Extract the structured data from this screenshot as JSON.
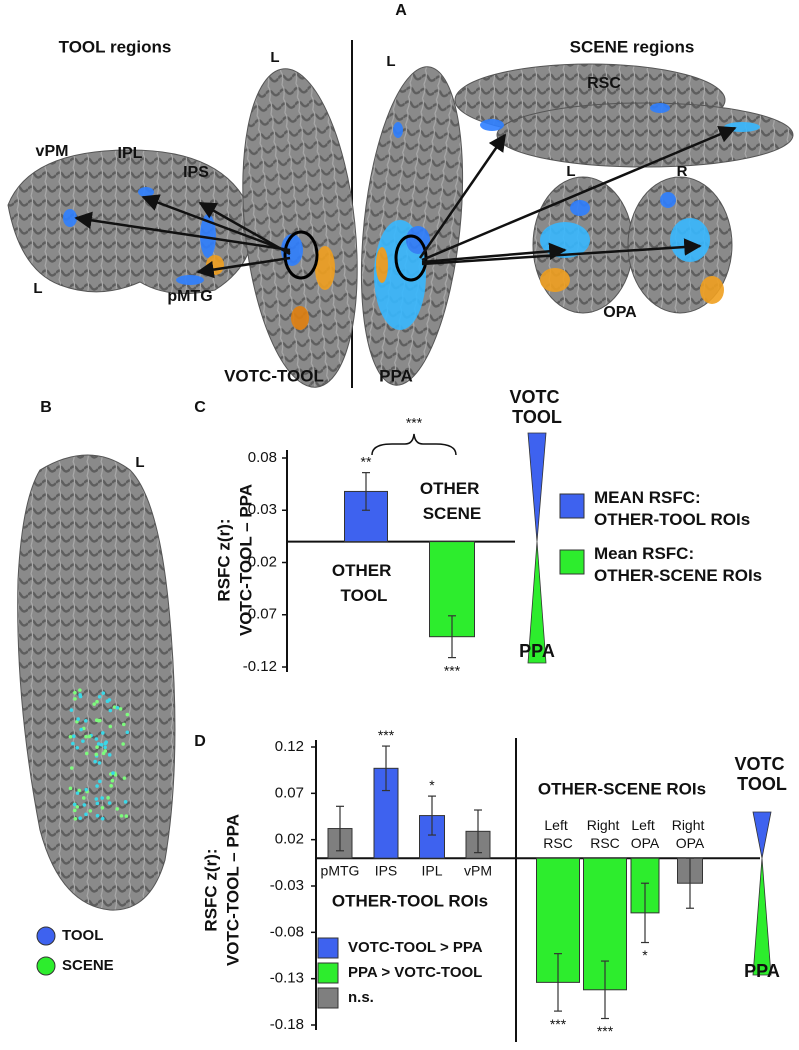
{
  "panel_labels": {
    "a": "A",
    "b": "B",
    "c": "C",
    "d": "D"
  },
  "panel_a": {
    "tool_title": "TOOL regions",
    "scene_title": "SCENE regions",
    "labels": [
      "L",
      "L",
      "RSC",
      "vPM",
      "IPL",
      "IPS",
      "L",
      "pMTG",
      "L",
      "R",
      "OPA",
      "VOTC-TOOL",
      "PPA"
    ]
  },
  "panel_b": {
    "hemisphere": "L",
    "legend": [
      {
        "name": "TOOL",
        "color": "#3e62ef"
      },
      {
        "name": "SCENE",
        "color": "#2ded2d"
      }
    ]
  },
  "chart_data": [
    {
      "type": "bar",
      "ylabel": [
        "RSFC z(r):",
        "VOTC-TOOL – PPA"
      ],
      "categories": [
        "OTHER TOOL",
        "OTHER SCENE"
      ],
      "series": [
        {
          "name": "MEAN RSFC: OTHER-TOOL ROIs",
          "color": "#3e62ef",
          "values": [
            0.048,
            null
          ],
          "errors": [
            0.018,
            null
          ],
          "stars": [
            "**",
            null
          ]
        },
        {
          "name": "Mean RSFC: OTHER-SCENE ROIs",
          "color": "#2ded2d",
          "values": [
            null,
            -0.091
          ],
          "errors": [
            null,
            0.02
          ],
          "stars": [
            null,
            "***"
          ]
        }
      ],
      "bracket_label": "***",
      "ylim": [
        -0.12,
        0.08
      ],
      "yticks": [
        0.08,
        0.03,
        -0.02,
        -0.07,
        -0.12
      ],
      "scale_labels": {
        "top": "VOTC TOOL",
        "bottom": "PPA"
      }
    },
    {
      "type": "bar",
      "ylabel": [
        "RSFC z(r):",
        "VOTC-TOOL – PPA"
      ],
      "categories": [
        "pMTG",
        "IPS",
        "IPL",
        "vPM",
        "Left RSC",
        "Right RSC",
        "Left OPA",
        "Right OPA"
      ],
      "group_labels": [
        "OTHER-TOOL ROIs",
        "OTHER-SCENE ROIs"
      ],
      "series": [
        {
          "name": "VOTC-TOOL > PPA",
          "color": "#3e62ef",
          "values": [
            null,
            0.097,
            0.046,
            null,
            null,
            null,
            null,
            null
          ],
          "errors": [
            null,
            0.024,
            0.021,
            null,
            null,
            null,
            null,
            null
          ],
          "stars": [
            null,
            "***",
            "*",
            null,
            null,
            null,
            null,
            null
          ]
        },
        {
          "name": "PPA > VOTC-TOOL",
          "color": "#2ded2d",
          "values": [
            null,
            null,
            null,
            null,
            -0.134,
            -0.142,
            -0.059,
            null
          ],
          "errors": [
            null,
            null,
            null,
            null,
            0.031,
            0.031,
            0.032,
            null
          ],
          "stars": [
            null,
            null,
            null,
            null,
            "***",
            "***",
            "*",
            null
          ]
        },
        {
          "name": "n.s.",
          "color": "#7f7f7f",
          "values": [
            0.032,
            null,
            null,
            0.029,
            null,
            null,
            null,
            -0.027
          ],
          "errors": [
            0.024,
            null,
            null,
            0.023,
            null,
            null,
            null,
            0.027
          ],
          "stars": [
            null,
            null,
            null,
            null,
            null,
            null,
            null,
            null
          ]
        }
      ],
      "ylim": [
        -0.18,
        0.12
      ],
      "yticks": [
        0.12,
        0.07,
        0.02,
        -0.03,
        -0.08,
        -0.13,
        -0.18
      ],
      "scale_labels": {
        "top": "VOTC TOOL",
        "bottom": "PPA"
      }
    }
  ]
}
